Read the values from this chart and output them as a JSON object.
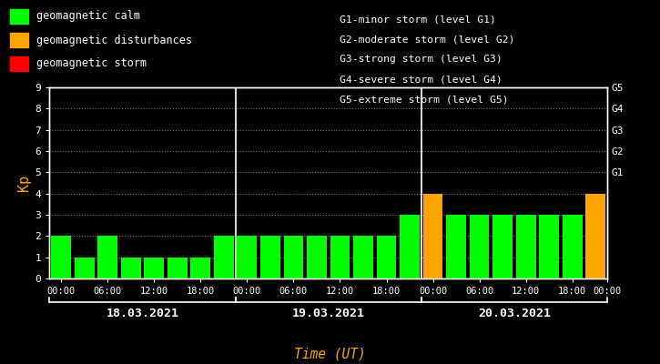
{
  "bg_color": "#000000",
  "plot_bg_color": "#000000",
  "text_color": "#ffffff",
  "bar_values": [
    2,
    1,
    2,
    1,
    1,
    1,
    1,
    2,
    2,
    2,
    2,
    2,
    2,
    2,
    2,
    3,
    4,
    3,
    3,
    3,
    3,
    3,
    3,
    4
  ],
  "bar_colors": [
    "#00ff00",
    "#00ff00",
    "#00ff00",
    "#00ff00",
    "#00ff00",
    "#00ff00",
    "#00ff00",
    "#00ff00",
    "#00ff00",
    "#00ff00",
    "#00ff00",
    "#00ff00",
    "#00ff00",
    "#00ff00",
    "#00ff00",
    "#00ff00",
    "#ffa500",
    "#00ff00",
    "#00ff00",
    "#00ff00",
    "#00ff00",
    "#00ff00",
    "#00ff00",
    "#ffa500"
  ],
  "ylim": [
    0,
    9
  ],
  "yticks": [
    0,
    1,
    2,
    3,
    4,
    5,
    6,
    7,
    8,
    9
  ],
  "ylabel": "Kp",
  "ylabel_color": "#ffa500",
  "xlabel": "Time (UT)",
  "xlabel_color": "#ffa500",
  "day_labels": [
    "18.03.2021",
    "19.03.2021",
    "20.03.2021"
  ],
  "day_dividers": [
    8,
    16
  ],
  "xtick_labels_per_day": [
    "00:00",
    "06:00",
    "12:00",
    "18:00"
  ],
  "legend_items": [
    {
      "label": "geomagnetic calm",
      "color": "#00ff00"
    },
    {
      "label": "geomagnetic disturbances",
      "color": "#ffa500"
    },
    {
      "label": "geomagnetic storm",
      "color": "#ff0000"
    }
  ],
  "legend_right_lines": [
    "G1-minor storm (level G1)",
    "G2-moderate storm (level G2)",
    "G3-strong storm (level G3)",
    "G4-severe storm (level G4)",
    "G5-extreme storm (level G5)"
  ],
  "dot_grid_color": "#777777",
  "bar_width": 0.85,
  "spine_color": "#ffffff"
}
